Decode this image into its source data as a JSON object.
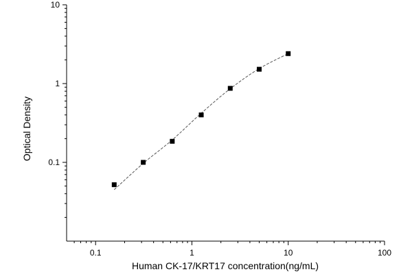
{
  "chart_data": {
    "type": "scatter",
    "title": "",
    "xlabel": "Human CK-17/KRT17 concentration(ng/mL)",
    "ylabel": "Optical Density",
    "x_scale": "log",
    "y_scale": "log",
    "xlim": [
      0.05,
      100
    ],
    "ylim": [
      0.01,
      10
    ],
    "x_ticks": [
      0.1,
      1,
      10,
      100
    ],
    "x_tick_labels": [
      "0.1",
      "1",
      "10",
      "100"
    ],
    "y_ticks": [
      0.1,
      1,
      10
    ],
    "y_tick_labels": [
      "0.1",
      "1",
      "10"
    ],
    "grid": false,
    "legend": "none",
    "series": [
      {
        "x": [
          0.156,
          0.3125,
          0.625,
          1.25,
          2.5,
          5,
          10
        ],
        "y": [
          0.052,
          0.1,
          0.185,
          0.4,
          0.87,
          1.52,
          2.4
        ],
        "marker": "square",
        "color": "#000000"
      }
    ],
    "fit_curve": {
      "style": "dashed",
      "color": "#555555",
      "x": [
        0.156,
        0.3125,
        0.625,
        1.25,
        2.5,
        5,
        10
      ],
      "y": [
        0.045,
        0.097,
        0.193,
        0.42,
        0.86,
        1.55,
        2.4
      ]
    }
  }
}
